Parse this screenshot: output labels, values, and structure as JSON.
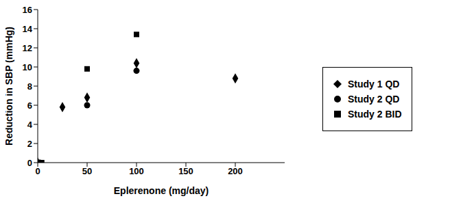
{
  "chart_data": {
    "type": "scatter",
    "x_label": "Eplerenone  (mg/day)",
    "y_label": "Reduction in SBP (mmHg)",
    "xlim": [
      0,
      250
    ],
    "xticks": [
      0,
      50,
      100,
      150,
      200
    ],
    "ylim": [
      0,
      16
    ],
    "yticks": [
      0,
      2,
      4,
      6,
      8,
      10,
      12,
      14,
      16
    ],
    "grid": false,
    "legend": "right",
    "series": [
      {
        "name": "Study 1 QD",
        "color": "#000000",
        "marker": "diamond",
        "x": [
          0,
          25,
          50,
          100,
          200
        ],
        "values": [
          0,
          5.8,
          6.8,
          10.4,
          8.8
        ]
      },
      {
        "name": "Study 2 QD",
        "color": "#000000",
        "marker": "circle",
        "x": [
          2,
          50,
          100
        ],
        "values": [
          0,
          6.0,
          9.6
        ]
      },
      {
        "name": "Study 2 BID",
        "color": "#000000",
        "marker": "square",
        "x": [
          4,
          50,
          100
        ],
        "values": [
          0,
          9.8,
          13.4
        ]
      }
    ]
  }
}
